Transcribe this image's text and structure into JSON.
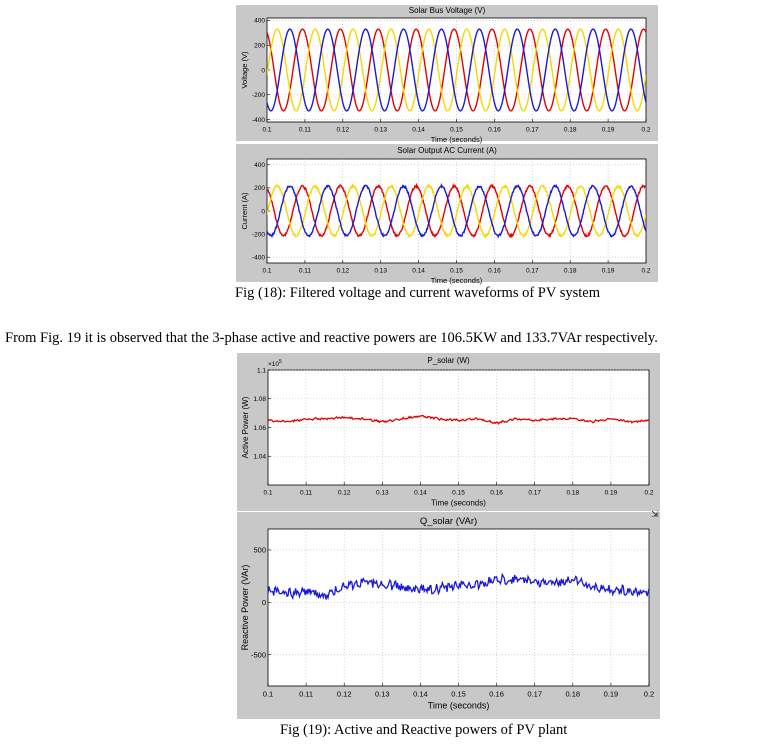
{
  "figure18": {
    "caption": "Fig (18): Filtered voltage and current waveforms of PV system"
  },
  "paragraph": "From Fig. 19 it is observed that the 3-phase active and reactive powers are 106.5KW and 133.7VAr respectively.",
  "figure19": {
    "caption": "Fig (19): Active and Reactive powers of PV plant"
  },
  "colors": {
    "phaseA": "#e60000",
    "phaseB": "#f5d800",
    "phaseC": "#1a1ad6",
    "axisBg": "#ffffff",
    "panelBg": "#c8c8c8",
    "grid": "#d0d0d0"
  },
  "chart_data": [
    {
      "type": "line",
      "title": "Solar Bus Voltage (V)",
      "xlabel": "Time (seconds)",
      "ylabel": "Voltage (V)",
      "xlim": [
        0.1,
        0.2
      ],
      "ylim": [
        -420,
        420
      ],
      "x_ticks": [
        "0.1",
        "0.11",
        "0.12",
        "0.13",
        "0.14",
        "0.15",
        "0.16",
        "0.17",
        "0.18",
        "0.19",
        "0.2"
      ],
      "y_ticks": [
        "400",
        "200",
        "0",
        "-200",
        "-400"
      ],
      "y_tick_values": [
        400,
        200,
        0,
        -200,
        -400
      ],
      "waveform": "3-phase sinusoid",
      "amplitude": 330,
      "frequency_hz": 100,
      "series": [
        {
          "color": "#e60000",
          "amplitude": 330,
          "phase_deg": 0
        },
        {
          "color": "#f5d800",
          "amplitude": 330,
          "phase_deg": 120
        },
        {
          "color": "#1a1ad6",
          "amplitude": 330,
          "phase_deg": 240
        }
      ]
    },
    {
      "type": "line",
      "title": "Solar Output AC Current (A)",
      "xlabel": "Time (seconds)",
      "ylabel": "Current (A)",
      "xlim": [
        0.1,
        0.2
      ],
      "ylim": [
        -450,
        450
      ],
      "x_ticks": [
        "0.1",
        "0.11",
        "0.12",
        "0.13",
        "0.14",
        "0.15",
        "0.16",
        "0.17",
        "0.18",
        "0.19",
        "0.2"
      ],
      "y_ticks": [
        "400",
        "200",
        "0",
        "-200",
        "-400"
      ],
      "y_tick_values": [
        400,
        200,
        0,
        -200,
        -400
      ],
      "waveform": "3-phase sinusoid with ripple",
      "amplitude": 215,
      "frequency_hz": 100,
      "series": [
        {
          "color": "#e60000",
          "amplitude": 215,
          "phase_deg": 0
        },
        {
          "color": "#f5d800",
          "amplitude": 215,
          "phase_deg": 120
        },
        {
          "color": "#1a1ad6",
          "amplitude": 215,
          "phase_deg": 240
        }
      ]
    },
    {
      "type": "line",
      "title": "P_solar (W)",
      "xlabel": "Time (seconds)",
      "ylabel": "Active Power (W)",
      "exponent_label": "×10",
      "exponent_power": "5",
      "xlim": [
        0.1,
        0.2
      ],
      "ylim": [
        1.02,
        1.1
      ],
      "x_ticks": [
        "0.1",
        "0.11",
        "0.12",
        "0.13",
        "0.14",
        "0.15",
        "0.16",
        "0.17",
        "0.18",
        "0.19",
        "0.2"
      ],
      "y_ticks": [
        "1.1",
        "1.08",
        "1.06",
        "1.04"
      ],
      "y_tick_values": [
        1.1,
        1.08,
        1.06,
        1.04
      ],
      "series": [
        {
          "color": "#e60000",
          "x": [
            0.1,
            0.105,
            0.11,
            0.115,
            0.12,
            0.125,
            0.13,
            0.135,
            0.14,
            0.145,
            0.15,
            0.155,
            0.16,
            0.165,
            0.17,
            0.175,
            0.18,
            0.185,
            0.19,
            0.195,
            0.2
          ],
          "values": [
            1.065,
            1.064,
            1.066,
            1.066,
            1.067,
            1.066,
            1.064,
            1.066,
            1.068,
            1.066,
            1.065,
            1.066,
            1.063,
            1.066,
            1.065,
            1.066,
            1.066,
            1.064,
            1.066,
            1.064,
            1.065
          ]
        }
      ]
    },
    {
      "type": "line",
      "title": "Q_solar (VAr)",
      "xlabel": "Time (seconds)",
      "ylabel": "Reactive Power (VAr)",
      "xlim": [
        0.1,
        0.2
      ],
      "ylim": [
        -800,
        700
      ],
      "x_ticks": [
        "0.1",
        "0.11",
        "0.12",
        "0.13",
        "0.14",
        "0.15",
        "0.16",
        "0.17",
        "0.18",
        "0.19",
        "0.2"
      ],
      "y_ticks": [
        "500",
        "0",
        "-500"
      ],
      "y_tick_values": [
        500,
        0,
        -500
      ],
      "series": [
        {
          "color": "#1a1ad6",
          "x": [
            0.1,
            0.105,
            0.11,
            0.115,
            0.12,
            0.125,
            0.13,
            0.135,
            0.14,
            0.145,
            0.15,
            0.155,
            0.16,
            0.165,
            0.17,
            0.175,
            0.18,
            0.185,
            0.19,
            0.195,
            0.2
          ],
          "values": [
            120,
            80,
            110,
            60,
            150,
            200,
            180,
            140,
            120,
            130,
            160,
            170,
            210,
            230,
            200,
            180,
            210,
            150,
            120,
            110,
            80
          ]
        }
      ]
    }
  ]
}
